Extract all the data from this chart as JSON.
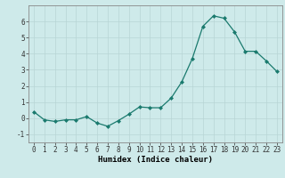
{
  "x": [
    0,
    1,
    2,
    3,
    4,
    5,
    6,
    7,
    8,
    9,
    10,
    11,
    12,
    13,
    14,
    15,
    16,
    17,
    18,
    19,
    20,
    21,
    22,
    23
  ],
  "y": [
    0.4,
    -0.1,
    -0.2,
    -0.1,
    -0.1,
    0.1,
    -0.3,
    -0.5,
    -0.15,
    0.25,
    0.7,
    0.65,
    0.65,
    1.25,
    2.25,
    3.7,
    5.7,
    6.35,
    6.2,
    5.35,
    4.15,
    4.15,
    3.55,
    2.9
  ],
  "line_color": "#1a7a6e",
  "marker": "D",
  "marker_size": 2.0,
  "bg_color": "#ceeaea",
  "grid_color": "#b8d5d5",
  "xlabel": "Humidex (Indice chaleur)",
  "xlim": [
    -0.5,
    23.5
  ],
  "ylim": [
    -1.5,
    7.0
  ],
  "yticks": [
    -1,
    0,
    1,
    2,
    3,
    4,
    5,
    6
  ],
  "xticks": [
    0,
    1,
    2,
    3,
    4,
    5,
    6,
    7,
    8,
    9,
    10,
    11,
    12,
    13,
    14,
    15,
    16,
    17,
    18,
    19,
    20,
    21,
    22,
    23
  ],
  "tick_fontsize": 5.5,
  "label_fontsize": 6.5,
  "linewidth": 0.9
}
